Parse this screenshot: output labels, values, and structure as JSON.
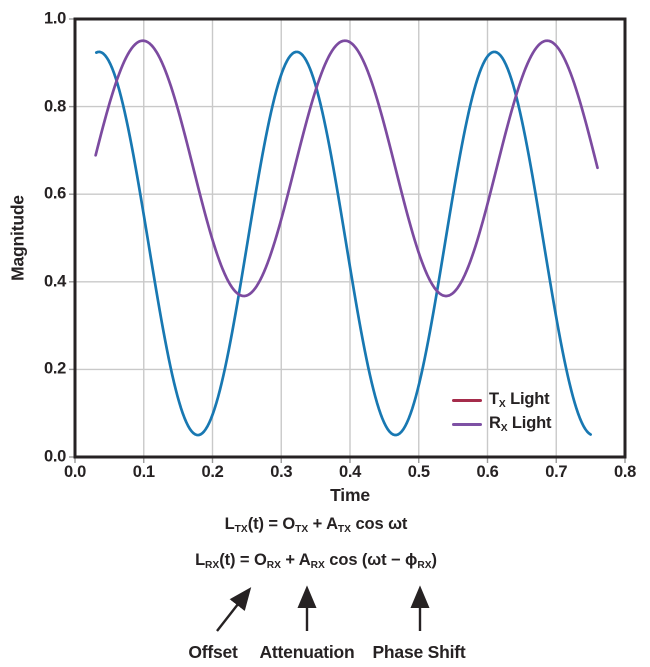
{
  "figure": {
    "background": "#ffffff"
  },
  "colors": {
    "text": "#262223",
    "frame": "#262223",
    "grid": "#c9c9c9",
    "tick": "#9a9a9a",
    "arrow": "#262223"
  },
  "chart_data": {
    "type": "line",
    "title": "",
    "xlabel": "Time",
    "ylabel": "Magnitude",
    "xlim": [
      0.0,
      0.8
    ],
    "ylim": [
      0.0,
      1.0
    ],
    "xticks": [
      "0.0",
      "0.1",
      "0.2",
      "0.3",
      "0.4",
      "0.5",
      "0.6",
      "0.7",
      "0.8"
    ],
    "yticks": [
      "0.0",
      "0.2",
      "0.4",
      "0.6",
      "0.8",
      "1.0"
    ],
    "grid": true,
    "legend": {
      "position": "lower-right-inside",
      "entries": [
        {
          "label": "TX Light",
          "label_segments": [
            {
              "text": "T"
            },
            {
              "text": "X",
              "sub": true
            },
            {
              "text": " Light"
            }
          ],
          "color": "#a52c4b"
        },
        {
          "label": "RX Light",
          "label_segments": [
            {
              "text": "R"
            },
            {
              "text": "X",
              "sub": true
            },
            {
              "text": " Light"
            }
          ],
          "color": "#7e51a4"
        }
      ]
    },
    "series": [
      {
        "name": "TX Light",
        "color": "#1878b2",
        "waveform": "cosine",
        "offset": 0.4875,
        "amplitude": 0.4375,
        "period": 0.2875,
        "peak_time": 0.035,
        "t_start": 0.031,
        "t_end": 0.75
      },
      {
        "name": "RX Light",
        "color": "#7c4ba0",
        "waveform": "cosine",
        "offset": 0.659,
        "amplitude": 0.2915,
        "period": 0.294,
        "peak_time": 0.0987,
        "t_start": 0.03,
        "t_end": 0.76
      }
    ]
  },
  "equations": {
    "line1": {
      "text": "L_TX(t) = O_TX + A_TX cos ωt",
      "segments": [
        {
          "text": "L"
        },
        {
          "text": "TX",
          "sub": true
        },
        {
          "text": "(t) = O"
        },
        {
          "text": "TX",
          "sub": true
        },
        {
          "text": " + A"
        },
        {
          "text": "TX",
          "sub": true
        },
        {
          "text": " cos ωt"
        }
      ]
    },
    "line2": {
      "text": "L_RX(t) = O_RX + A_RX cos (ωt − ϕ_RX)",
      "segments": [
        {
          "text": "L"
        },
        {
          "text": "RX",
          "sub": true
        },
        {
          "text": "(t) = O"
        },
        {
          "text": "RX",
          "sub": true
        },
        {
          "text": " + A"
        },
        {
          "text": "RX",
          "sub": true
        },
        {
          "text": " cos (ωt − ϕ"
        },
        {
          "text": "RX",
          "sub": true
        },
        {
          "text": ")"
        }
      ]
    }
  },
  "annotations": {
    "labels": [
      "Offset",
      "Attenuation",
      "Phase Shift"
    ]
  }
}
